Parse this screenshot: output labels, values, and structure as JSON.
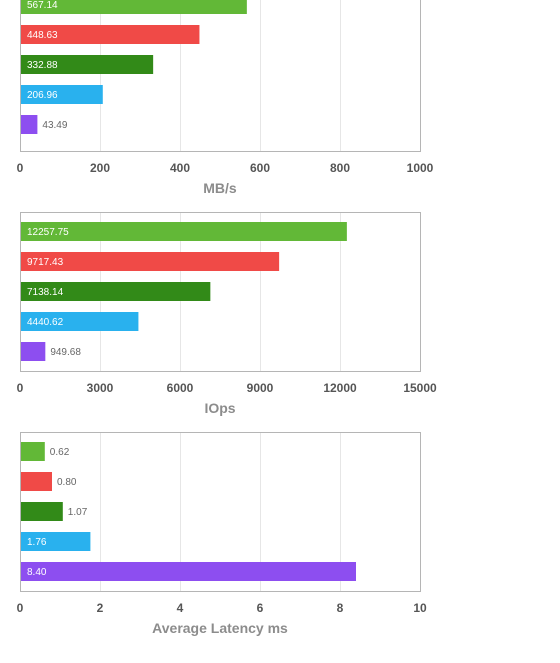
{
  "chart_data": [
    {
      "type": "bar",
      "orientation": "horizontal",
      "title": "",
      "xlabel": "MB/s",
      "xlim": [
        0,
        1000
      ],
      "ticks": [
        0,
        200,
        400,
        600,
        800,
        1000
      ],
      "grid": true,
      "colors": [
        "#62b837",
        "#f04a47",
        "#328a18",
        "#29b1ee",
        "#8d4ef0"
      ],
      "values": [
        567.14,
        448.63,
        332.88,
        206.96,
        43.49
      ],
      "labels": [
        "567.14",
        "448.63",
        "332.88",
        "206.96",
        "43.49"
      ]
    },
    {
      "type": "bar",
      "orientation": "horizontal",
      "title": "",
      "xlabel": "IOps",
      "xlim": [
        0,
        15000
      ],
      "ticks": [
        0,
        3000,
        6000,
        9000,
        12000,
        15000
      ],
      "grid": true,
      "colors": [
        "#62b837",
        "#f04a47",
        "#328a18",
        "#29b1ee",
        "#8d4ef0"
      ],
      "values": [
        12257.75,
        9717.43,
        7138.14,
        4440.62,
        949.68
      ],
      "labels": [
        "12257.75",
        "9717.43",
        "7138.14",
        "4440.62",
        "949.68"
      ]
    },
    {
      "type": "bar",
      "orientation": "horizontal",
      "title": "",
      "xlabel": "Average Latency ms",
      "xlim": [
        0,
        10
      ],
      "ticks": [
        0,
        2,
        4,
        6,
        8,
        10
      ],
      "grid": true,
      "colors": [
        "#62b837",
        "#f04a47",
        "#328a18",
        "#29b1ee",
        "#8d4ef0"
      ],
      "values": [
        0.62,
        0.8,
        1.07,
        1.76,
        8.4
      ],
      "labels": [
        "0.62",
        "0.80",
        "1.07",
        "1.76",
        "8.40"
      ]
    }
  ]
}
